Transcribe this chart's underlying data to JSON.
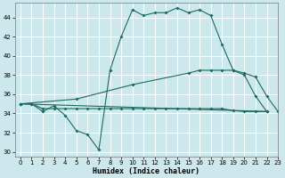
{
  "title": "",
  "xlabel": "Humidex (Indice chaleur)",
  "xlim": [
    -0.5,
    23
  ],
  "ylim": [
    29.5,
    45.5
  ],
  "yticks": [
    30,
    32,
    34,
    36,
    38,
    40,
    42,
    44
  ],
  "xticks": [
    0,
    1,
    2,
    3,
    4,
    5,
    6,
    7,
    8,
    9,
    10,
    11,
    12,
    13,
    14,
    15,
    16,
    17,
    18,
    19,
    20,
    21,
    22,
    23
  ],
  "bg_color": "#cce8ed",
  "grid_color": "#ffffff",
  "line_color": "#1a6b5a",
  "series1": {
    "x": [
      0,
      1,
      2,
      3,
      4,
      5,
      6,
      7,
      8,
      9,
      10,
      11,
      12,
      13,
      14,
      15,
      16,
      17,
      18,
      19,
      20,
      21,
      22
    ],
    "y": [
      35.0,
      35.0,
      34.2,
      34.8,
      33.8,
      32.2,
      31.8,
      30.2,
      38.5,
      42.0,
      44.8,
      44.2,
      44.5,
      44.5,
      45.0,
      44.5,
      44.8,
      44.2,
      41.2,
      38.5,
      38.0,
      35.8,
      34.2
    ]
  },
  "series2": {
    "x": [
      0,
      1,
      2,
      3,
      4,
      5,
      6,
      7,
      8,
      9,
      10,
      11,
      12,
      13,
      14,
      15,
      16,
      17,
      18,
      19,
      20,
      21,
      22
    ],
    "y": [
      35.0,
      35.0,
      34.5,
      34.5,
      34.5,
      34.5,
      34.5,
      34.5,
      34.5,
      34.5,
      34.5,
      34.5,
      34.5,
      34.5,
      34.5,
      34.5,
      34.5,
      34.5,
      34.5,
      34.3,
      34.2,
      34.2,
      34.2
    ]
  },
  "series3": {
    "x": [
      0,
      5,
      10,
      15,
      16,
      17,
      18,
      19,
      20,
      21,
      22,
      23
    ],
    "y": [
      35.0,
      35.5,
      37.0,
      38.2,
      38.5,
      38.5,
      38.5,
      38.5,
      38.2,
      37.8,
      35.8,
      34.2
    ]
  },
  "series4": {
    "x": [
      0,
      22
    ],
    "y": [
      35.0,
      34.2
    ]
  }
}
